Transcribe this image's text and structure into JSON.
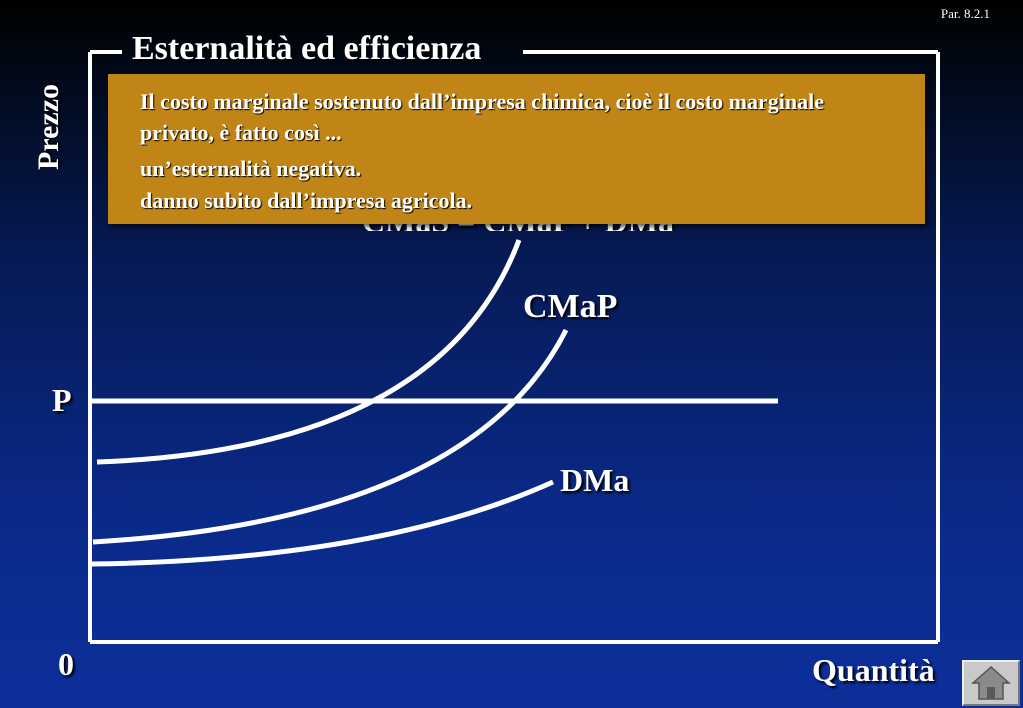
{
  "slide": {
    "section": "Par. 8.2.1",
    "title": "Esternalità ed efficienza"
  },
  "axes": {
    "y_label": "Prezzo",
    "x_label": "Quantità",
    "origin": "0",
    "price_label": "P"
  },
  "curves": {
    "cmas_label_partial": "CMaS = CMaP + DMa",
    "cmap_label": "CMaP",
    "dma_label": "DMa"
  },
  "callout": {
    "text": "Il costo marginale sostenuto dall’impresa chimica, cioè il costo marginale privato, è fatto così ...",
    "hidden_line_1": "un’esternalità negativa.",
    "hidden_line_2": "danno subito dall’impresa agricola."
  },
  "nav": {
    "icon": "home-icon"
  },
  "colors": {
    "background_top": "#000000",
    "background_bottom": "#0c2f9a",
    "callout": "#c08516",
    "lines": "#ffffff"
  }
}
